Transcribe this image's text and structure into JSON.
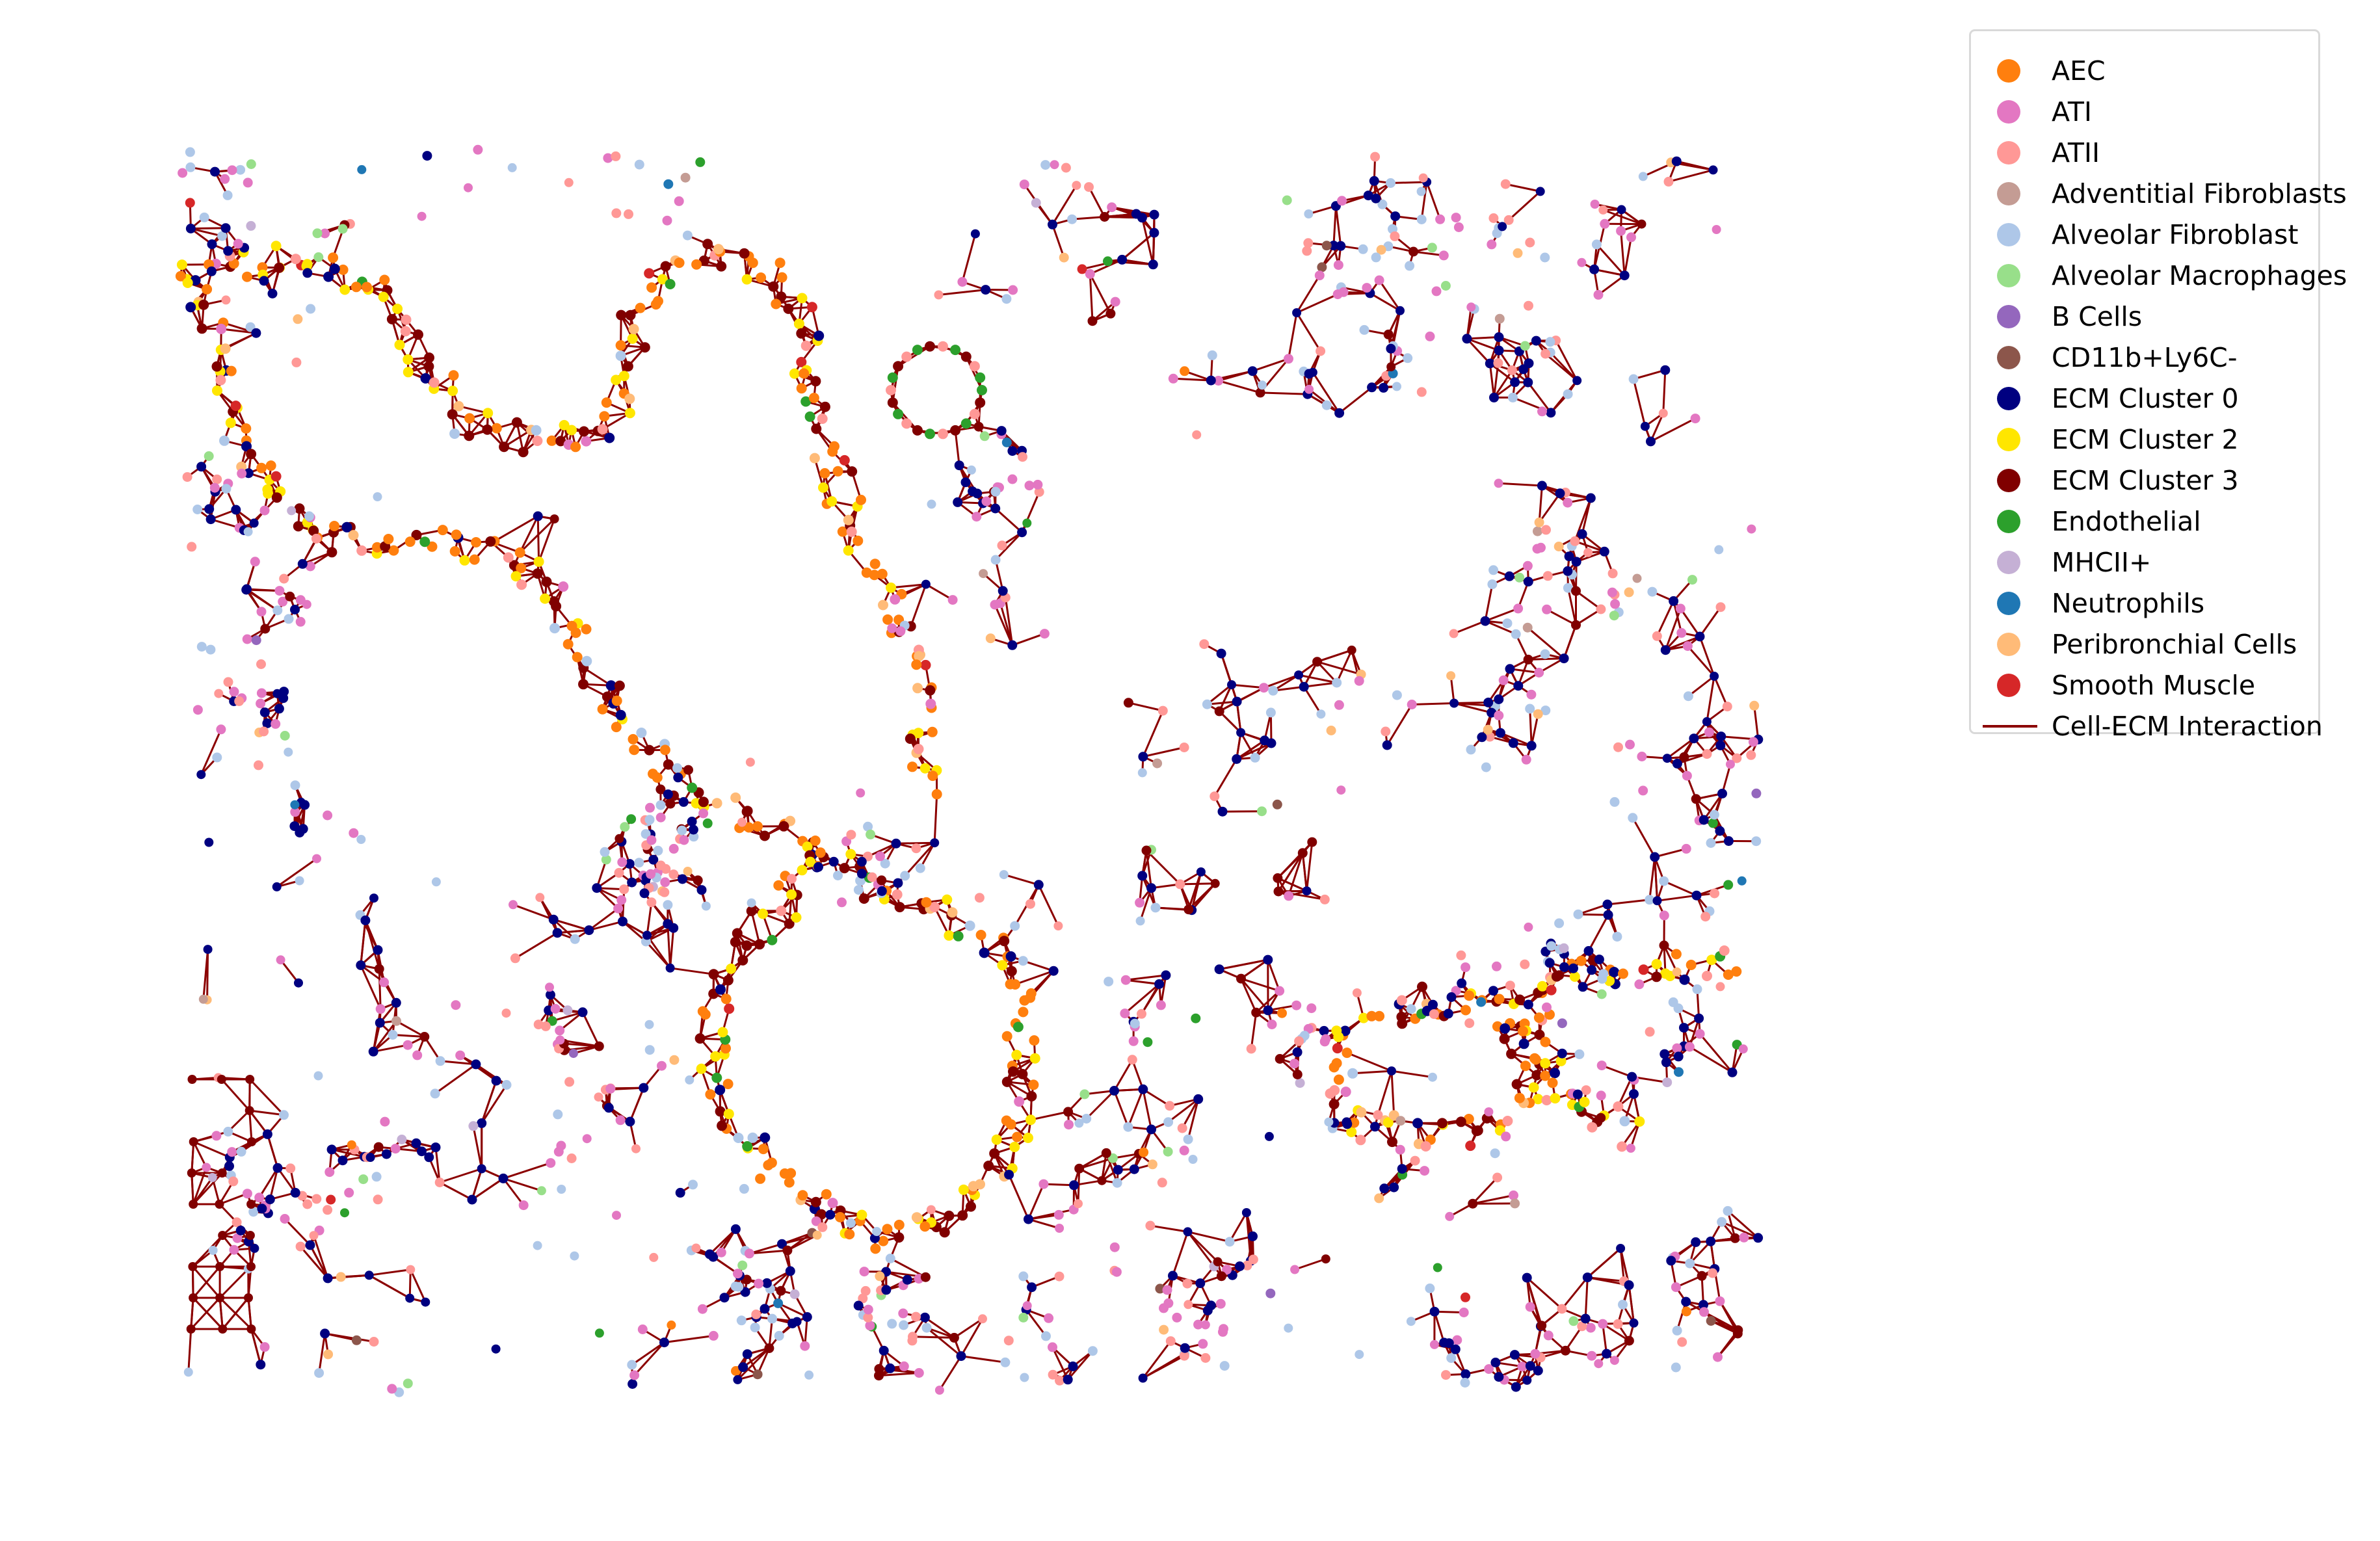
{
  "chart_data": {
    "type": "scatter",
    "title": "",
    "xlabel": "",
    "ylabel": "",
    "axes_visible": false,
    "grid": false,
    "legend_position": "upper-right outside",
    "series": [
      {
        "name": "AEC",
        "color": "#ff7f0e",
        "marker": "dot"
      },
      {
        "name": "ATI",
        "color": "#e377c2",
        "marker": "dot"
      },
      {
        "name": "ATII",
        "color": "#ff9896",
        "marker": "dot"
      },
      {
        "name": "Adventitial Fibroblasts",
        "color": "#c49c94",
        "marker": "dot"
      },
      {
        "name": "Alveolar Fibroblast",
        "color": "#aec7e8",
        "marker": "dot"
      },
      {
        "name": "Alveolar Macrophages",
        "color": "#98df8a",
        "marker": "dot"
      },
      {
        "name": "B Cells",
        "color": "#9467bd",
        "marker": "dot"
      },
      {
        "name": "CD11b+Ly6C-",
        "color": "#8c564b",
        "marker": "dot"
      },
      {
        "name": "ECM Cluster 0",
        "color": "#000080",
        "marker": "dot"
      },
      {
        "name": "ECM Cluster 2",
        "color": "#ffe600",
        "marker": "dot"
      },
      {
        "name": "ECM Cluster 3",
        "color": "#800000",
        "marker": "dot"
      },
      {
        "name": "Endothelial",
        "color": "#2ca02c",
        "marker": "dot"
      },
      {
        "name": "MHCII+",
        "color": "#c5b0d5",
        "marker": "dot"
      },
      {
        "name": "Neutrophils",
        "color": "#1f77b4",
        "marker": "dot"
      },
      {
        "name": "Peribronchial Cells",
        "color": "#ffbb78",
        "marker": "dot"
      },
      {
        "name": "Smooth Muscle",
        "color": "#d62728",
        "marker": "dot"
      },
      {
        "name": "Cell-ECM Interaction",
        "color": "#8b0000",
        "marker": "line"
      }
    ]
  }
}
